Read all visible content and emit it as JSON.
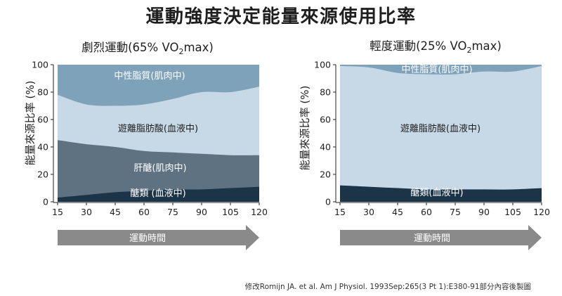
{
  "title": "運動強度決定能量來源使用比率",
  "footer": "修改Romijn JA. et al. Am J Physiol. 1993Sep:265(3 Pt 1):E380-91部分內容後製圖",
  "colors": {
    "axis": "#222222",
    "arrow": "#8a8a8a",
    "arrow_text": "#ffffff"
  },
  "chart_data": [
    {
      "type": "area",
      "stacked": true,
      "title_main": "劇烈運動(65% VO",
      "title_sub": "2",
      "title_end": "max)",
      "ylabel": "能量來源比率 (%)",
      "xlabel": "運動時間",
      "x": [
        15,
        30,
        45,
        60,
        75,
        90,
        105,
        120
      ],
      "ylim": [
        0,
        100
      ],
      "yticks": [
        0,
        20,
        40,
        60,
        80,
        100
      ],
      "grid": false,
      "series": [
        {
          "name": "醣類 (血液中)",
          "color": "#1c3448",
          "label_color": "#ffffff",
          "values": [
            3,
            5,
            7,
            8,
            9,
            9,
            10,
            11
          ]
        },
        {
          "name": "肝醣(肌肉中)",
          "color": "#5f7282",
          "label_color": "#ffffff",
          "values": [
            42,
            37,
            33,
            29,
            27,
            26,
            24,
            23
          ]
        },
        {
          "name": "遊離脂肪酸(血液中)",
          "color": "#c7d9e7",
          "label_color": "#1f1f1f",
          "values": [
            33,
            29,
            30,
            34,
            39,
            45,
            46,
            50
          ]
        },
        {
          "name": "中性脂質(肌肉中)",
          "color": "#7fa2bb",
          "label_color": "#ffffff",
          "values": [
            22,
            29,
            30,
            29,
            25,
            20,
            20,
            16
          ]
        }
      ]
    },
    {
      "type": "area",
      "stacked": true,
      "title_main": "輕度運動(25% VO",
      "title_sub": "2",
      "title_end": "max)",
      "ylabel": "能量來源比率 (%)",
      "xlabel": "運動時間",
      "x": [
        15,
        30,
        45,
        60,
        75,
        90,
        105,
        120
      ],
      "ylim": [
        0,
        100
      ],
      "yticks": [
        0,
        20,
        40,
        60,
        80,
        100
      ],
      "grid": false,
      "series": [
        {
          "name": "醣類(血液中)",
          "color": "#1c3448",
          "label_color": "#ffffff",
          "values": [
            12,
            11,
            10,
            9,
            9,
            9,
            9,
            10
          ]
        },
        {
          "name": "遊離脂肪酸(血液中)",
          "color": "#c7d9e7",
          "label_color": "#1f1f1f",
          "values": [
            87,
            87,
            84,
            84,
            84,
            86,
            86,
            89
          ]
        },
        {
          "name": "中性脂質(肌肉中)",
          "color": "#7fa2bb",
          "label_color": "#ffffff",
          "values": [
            1,
            2,
            6,
            7,
            7,
            5,
            5,
            1
          ]
        }
      ]
    }
  ]
}
